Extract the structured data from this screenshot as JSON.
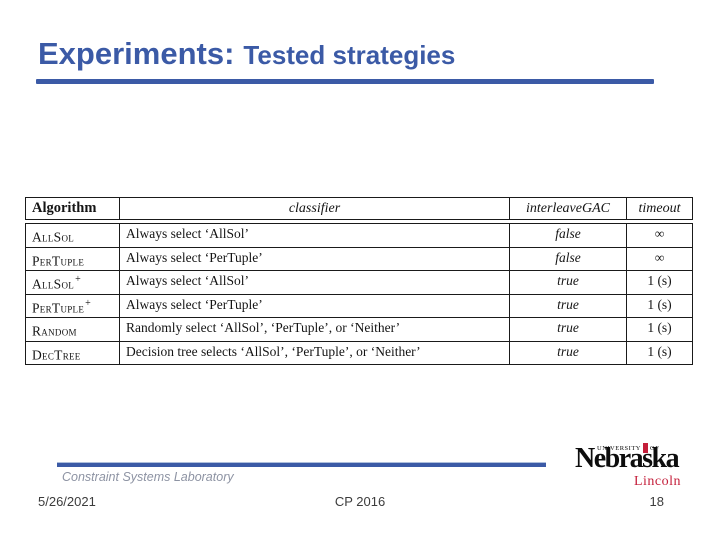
{
  "slide": {
    "title_primary": "Experiments:",
    "title_secondary": "Tested strategies",
    "colors": {
      "accent_blue": "#3b5aa6",
      "lincoln_red": "#c41e3a"
    }
  },
  "table": {
    "headers": {
      "algorithm": "Algorithm",
      "classifier": "classifier",
      "interleave_gac": "interleaveGAC",
      "timeout": "timeout"
    },
    "rows": [
      {
        "algorithm": "AllSol",
        "sup": "",
        "classifier": "Always select ‘AllSol’",
        "interleave_gac": "false",
        "timeout": "∞"
      },
      {
        "algorithm": "PerTuple",
        "sup": "",
        "classifier": "Always select ‘PerTuple’",
        "interleave_gac": "false",
        "timeout": "∞"
      },
      {
        "algorithm": "AllSol",
        "sup": "+",
        "classifier": "Always select ‘AllSol’",
        "interleave_gac": "true",
        "timeout": "1 (s)"
      },
      {
        "algorithm": "PerTuple",
        "sup": "+",
        "classifier": "Always select ‘PerTuple’",
        "interleave_gac": "true",
        "timeout": "1 (s)"
      },
      {
        "algorithm": "Random",
        "sup": "",
        "classifier": "Randomly select ‘AllSol’, ‘PerTuple’, or ‘Neither’",
        "interleave_gac": "true",
        "timeout": "1 (s)"
      },
      {
        "algorithm": "DecTree",
        "sup": "",
        "classifier": "Decision tree selects ‘AllSol’, ‘PerTuple’, or ‘Neither’",
        "interleave_gac": "true",
        "timeout": "1 (s)"
      }
    ]
  },
  "footer": {
    "lab": "Constraint Systems Laboratory",
    "date": "5/26/2021",
    "conference": "CP 2016",
    "page_number": "18",
    "logo": {
      "top_text": "UNIVERSITY OF",
      "name": "Nebraska",
      "sub_text": "Lincoln"
    }
  }
}
